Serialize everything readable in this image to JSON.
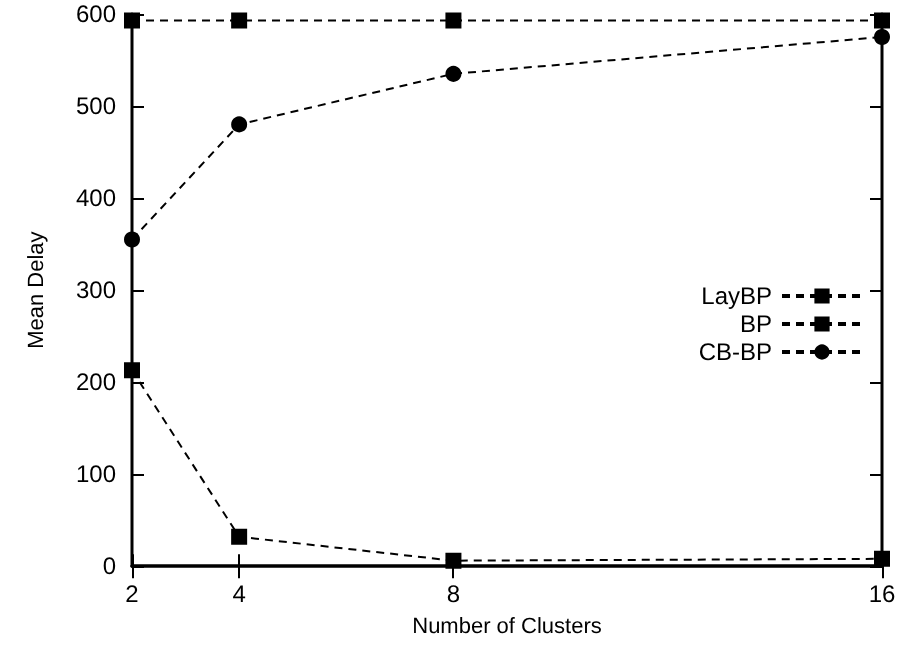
{
  "chart_data": {
    "type": "line",
    "xlabel": "Number of Clusters",
    "ylabel": "Mean Delay",
    "x": [
      2,
      4,
      8,
      16
    ],
    "xlim": [
      2,
      16
    ],
    "xticks": [
      2,
      4,
      8,
      16
    ],
    "ylim": [
      0,
      600
    ],
    "yticks": [
      0,
      100,
      200,
      300,
      400,
      500,
      600
    ],
    "series": [
      {
        "name": "LayBP",
        "color": "#000000",
        "marker": "square",
        "values": [
          213,
          32,
          6,
          8
        ]
      },
      {
        "name": "BP",
        "color": "#000000",
        "marker": "square",
        "values": [
          593,
          593,
          593,
          593
        ]
      },
      {
        "name": "CB-BP",
        "color": "#000000",
        "marker": "circle",
        "values": [
          355,
          480,
          535,
          575
        ]
      }
    ],
    "line_style": "dashed",
    "grid": false,
    "legend": "right"
  }
}
